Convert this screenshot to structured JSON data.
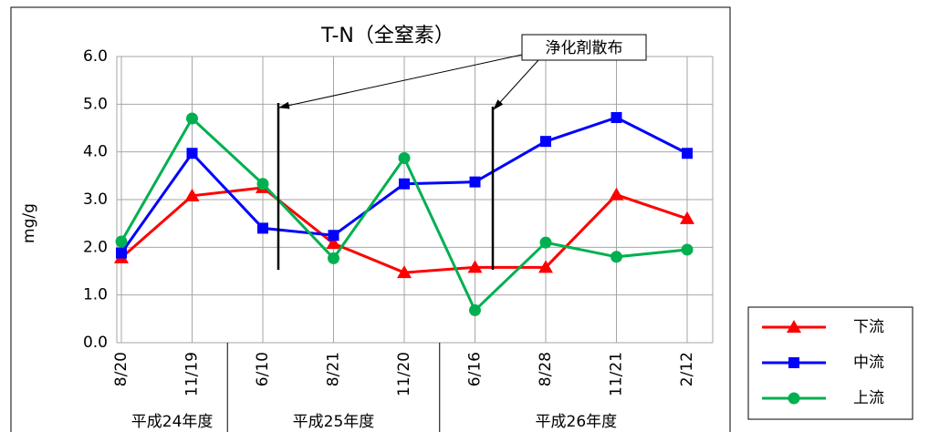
{
  "chart_data": {
    "type": "line",
    "title": "T-N（全窒素）",
    "y_label": "mg/g",
    "annotation": "浄化剤散布",
    "categories": [
      "8/20",
      "11/19",
      "6/10",
      "8/21",
      "11/20",
      "6/16",
      "8/28",
      "11/21",
      "2/12"
    ],
    "groups": [
      {
        "label": "平成24年度",
        "count": 2
      },
      {
        "label": "平成25年度",
        "count": 3
      },
      {
        "label": "平成26年度",
        "count": 4
      }
    ],
    "series": [
      {
        "name": "下流",
        "color": "#ff0000",
        "marker": "triangle",
        "values": [
          1.78,
          3.08,
          3.25,
          2.08,
          1.47,
          1.58,
          1.58,
          3.1,
          2.6
        ]
      },
      {
        "name": "中流",
        "color": "#0000ff",
        "marker": "square",
        "values": [
          1.88,
          3.97,
          2.4,
          2.25,
          3.33,
          3.37,
          4.22,
          4.72,
          3.97
        ]
      },
      {
        "name": "上流",
        "color": "#00b050",
        "marker": "circle",
        "values": [
          2.12,
          4.7,
          3.33,
          1.77,
          3.87,
          0.68,
          2.1,
          1.8,
          1.95
        ]
      }
    ],
    "ylim": [
      0,
      6
    ],
    "yticks": [
      {
        "value": 0,
        "label": "0.0"
      },
      {
        "value": 1,
        "label": "1.0"
      },
      {
        "value": 2,
        "label": "2.0"
      },
      {
        "value": 3,
        "label": "3.0"
      },
      {
        "value": 4,
        "label": "4.0"
      },
      {
        "value": 5,
        "label": "5.0"
      },
      {
        "value": 6,
        "label": "6.0"
      }
    ],
    "grid": true
  }
}
